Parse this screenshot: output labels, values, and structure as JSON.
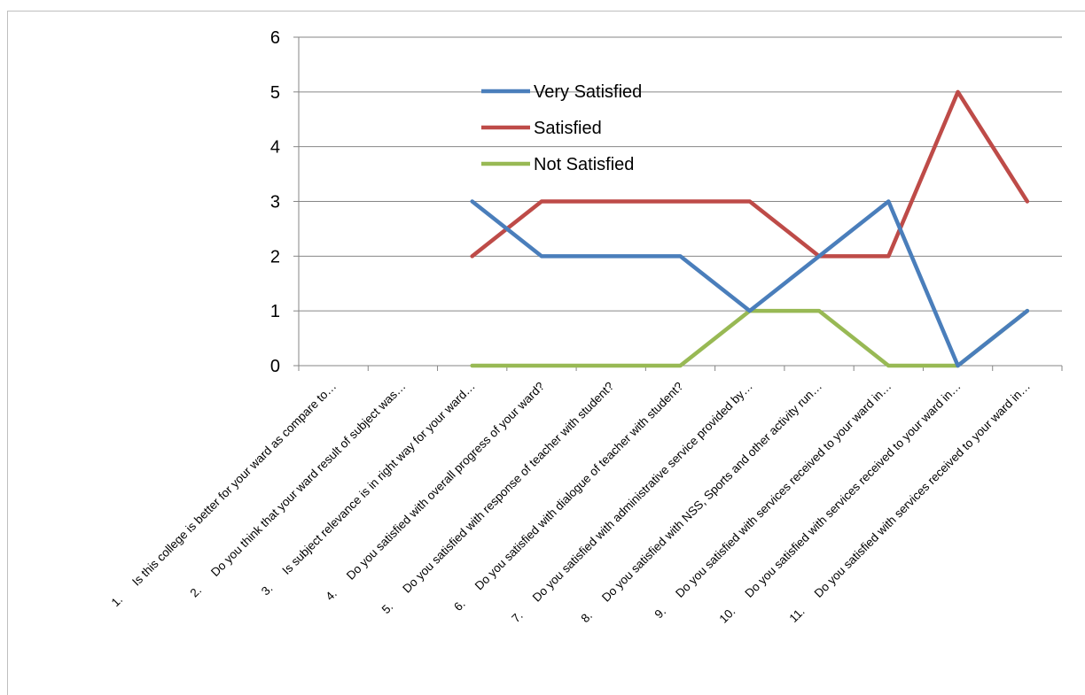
{
  "chart_data": {
    "type": "line",
    "title": "",
    "xlabel": "",
    "ylabel": "",
    "ylim": [
      0,
      6
    ],
    "yticks": [
      0,
      1,
      2,
      3,
      4,
      5,
      6
    ],
    "grid": true,
    "legend_position": "top-center",
    "categories": [
      {
        "num": "1.",
        "text": "Is this college is better for your ward as compare to…"
      },
      {
        "num": "2.",
        "text": "Do you think that your ward result of subject was…"
      },
      {
        "num": "3.",
        "text": "Is subject relevance is in right way for your ward…"
      },
      {
        "num": "4.",
        "text": "Do you satisfied with overall progress of your ward?"
      },
      {
        "num": "5.",
        "text": "Do you satisfied with response of teacher with student?"
      },
      {
        "num": "6.",
        "text": "Do you satisfied with dialogue of teacher with student?"
      },
      {
        "num": "7.",
        "text": "Do you satisfied with administrative service provided by…"
      },
      {
        "num": "8.",
        "text": "Do you satisfied with NSS, Sports and other activity run…"
      },
      {
        "num": "9.",
        "text": "Do you satisfied with services received to your ward in…"
      },
      {
        "num": "10.",
        "text": "Do you satisfied with services received to your ward in…"
      },
      {
        "num": "11.",
        "text": "Do you satisfied with services received to your ward in…"
      }
    ],
    "series": [
      {
        "name": "Very Satisfied",
        "color": "#4a7ebb",
        "values": [
          null,
          null,
          3,
          2,
          2,
          2,
          1,
          2,
          3,
          0,
          1
        ]
      },
      {
        "name": "Satisfied",
        "color": "#be4b48",
        "values": [
          null,
          null,
          2,
          3,
          3,
          3,
          3,
          2,
          2,
          5,
          3
        ]
      },
      {
        "name": "Not Satisfied",
        "color": "#98b954",
        "values": [
          null,
          null,
          0,
          0,
          0,
          0,
          1,
          1,
          0,
          0,
          1
        ]
      }
    ]
  }
}
